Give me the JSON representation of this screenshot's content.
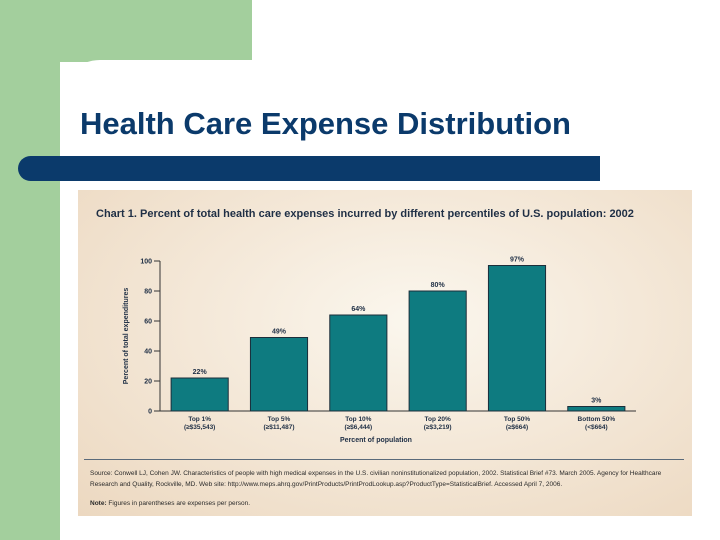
{
  "slide": {
    "title": "Health Care Expense Distribution",
    "colors": {
      "green": "#a3cf9d",
      "navy": "#0b3a6b",
      "bar": "#0e7b80"
    }
  },
  "figure": {
    "source_text": "Source: Conwell LJ, Cohen JW. Characteristics of people with high medical expenses in the U.S. civilian noninstitutionalized population, 2002. Statistical Brief #73. March 2005. Agency for Healthcare Research and Quality, Rockville, MD. Web site: http://www.meps.ahrq.gov/PrintProducts/PrintProdLookup.asp?ProductType=StatisticalBrief. Accessed April 7, 2006.",
    "note_label": "Note:",
    "note_text": "Figures in parentheses are expenses per person."
  },
  "chart_data": {
    "type": "bar",
    "title": "Chart 1. Percent of total health care expenses incurred by different percentiles of U.S. population: 2002",
    "xlabel": "Percent of population",
    "ylabel": "Percent of total expenditures",
    "ylim": [
      0,
      100
    ],
    "yticks": [
      0,
      20,
      40,
      60,
      80,
      100
    ],
    "categories": [
      "Top 1%",
      "Top 5%",
      "Top 10%",
      "Top 20%",
      "Top 50%",
      "Bottom 50%"
    ],
    "sublabels": [
      "(≥$35,543)",
      "(≥$11,487)",
      "(≥$6,444)",
      "(≥$3,219)",
      "(≥$664)",
      "(<$664)"
    ],
    "values": [
      22,
      49,
      64,
      80,
      97,
      3
    ],
    "value_labels": [
      "22%",
      "49%",
      "64%",
      "80%",
      "97%",
      "3%"
    ],
    "grid": false,
    "bar_color": "#0e7b80"
  }
}
